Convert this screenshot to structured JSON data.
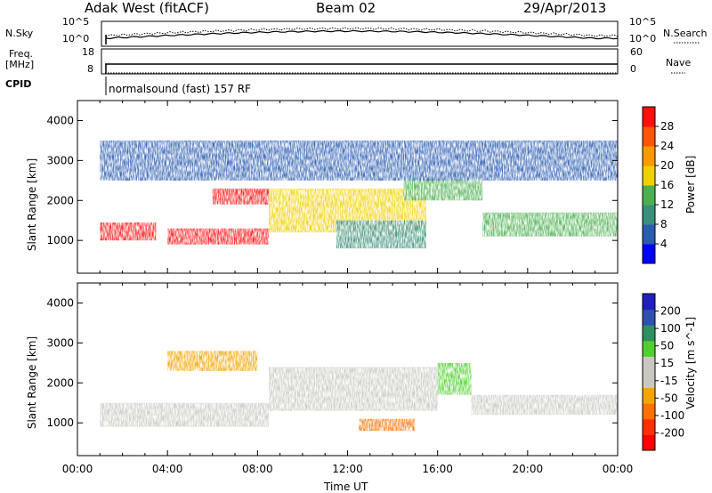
{
  "header": {
    "station": "Adak West (fitACF)",
    "beam": "Beam 02",
    "date": "29/Apr/2013"
  },
  "strips": {
    "nsky_label": "N.Sky",
    "nsearch_label": "N.Search",
    "nsky_ticks": [
      "10^5",
      "10^0"
    ],
    "nsearch_ticks": [
      "10^5",
      "10^0"
    ],
    "freq_label_1": "Freq.",
    "freq_label_2": "[MHz]",
    "freq_ticks": [
      "18",
      "8"
    ],
    "nave_label": "Nave",
    "nave_ticks": [
      "60",
      "0"
    ],
    "cpid_label": "CPID",
    "cpid_value": "normalsound (fast) 157 RF"
  },
  "colors": {
    "power_scale": [
      "#0000ff",
      "#2a5cb0",
      "#3a8f7a",
      "#4cb050",
      "#f0d000",
      "#ff9900",
      "#ff5500",
      "#ff1010"
    ],
    "velocity_scale": [
      "#2020c0",
      "#3050b0",
      "#2f8f5f",
      "#50d030",
      "#c8c8c0",
      "#c8c8c0",
      "#f5a500",
      "#ff7000",
      "#ff3000",
      "#ff0000"
    ],
    "ground_scatter": "#c8c8c0"
  },
  "chart_data": [
    {
      "type": "heatmap",
      "name": "power",
      "title": "",
      "xlabel": "",
      "ylabel": "Slant Range [km]",
      "xlim": [
        "00:00",
        "24:00"
      ],
      "ylim": [
        180,
        4500
      ],
      "yticks": [
        1000,
        2000,
        3000,
        4000
      ],
      "grid": false,
      "colorbar": {
        "label": "Power [dB]",
        "ticks": [
          4,
          8,
          12,
          16,
          20,
          24,
          28
        ],
        "range": [
          0,
          32
        ]
      },
      "regions": [
        {
          "from_h": 1.0,
          "to_h": 3.5,
          "range_km": [
            1000,
            1450
          ],
          "power_db": 28
        },
        {
          "from_h": 4.0,
          "to_h": 8.5,
          "range_km": [
            900,
            1300
          ],
          "power_db": 30
        },
        {
          "from_h": 6.0,
          "to_h": 8.5,
          "range_km": [
            1900,
            2300
          ],
          "power_db": 28
        },
        {
          "from_h": 8.5,
          "to_h": 15.5,
          "range_km": [
            1200,
            2300
          ],
          "power_db": 18
        },
        {
          "from_h": 14.5,
          "to_h": 18.0,
          "range_km": [
            2000,
            2600
          ],
          "power_db": 14
        },
        {
          "from_h": 11.5,
          "to_h": 15.5,
          "range_km": [
            800,
            1500
          ],
          "power_db": 8
        },
        {
          "from_h": 18.0,
          "to_h": 24.0,
          "range_km": [
            1100,
            1700
          ],
          "power_db": 12
        },
        {
          "from_h": 1.0,
          "to_h": 24.0,
          "range_km": [
            2500,
            3500
          ],
          "power_db": 6
        }
      ]
    },
    {
      "type": "heatmap",
      "name": "velocity",
      "title": "",
      "xlabel": "Time UT",
      "ylabel": "Slant Range [km]",
      "xlim": [
        "00:00",
        "24:00"
      ],
      "ylim": [
        180,
        4500
      ],
      "xticks": [
        "00:00",
        "04:00",
        "08:00",
        "12:00",
        "16:00",
        "20:00",
        "00:00"
      ],
      "yticks": [
        1000,
        2000,
        3000,
        4000
      ],
      "grid": false,
      "colorbar": {
        "label": "Velocity [m s^-1]",
        "ticks": [
          200,
          100,
          50,
          15,
          -15,
          -50,
          -100,
          -200
        ],
        "range": [
          -250,
          250
        ]
      },
      "regions": [
        {
          "from_h": 1.0,
          "to_h": 8.5,
          "range_km": [
            900,
            1500
          ],
          "velocity": 0
        },
        {
          "from_h": 8.5,
          "to_h": 16.0,
          "range_km": [
            1300,
            2400
          ],
          "velocity": 0
        },
        {
          "from_h": 16.0,
          "to_h": 17.5,
          "range_km": [
            1700,
            2500
          ],
          "velocity": 30
        },
        {
          "from_h": 17.5,
          "to_h": 24.0,
          "range_km": [
            1200,
            1700
          ],
          "velocity": 0
        },
        {
          "from_h": 12.5,
          "to_h": 15.0,
          "range_km": [
            800,
            1100
          ],
          "velocity": -60
        },
        {
          "from_h": 4.0,
          "to_h": 8.0,
          "range_km": [
            2300,
            2800
          ],
          "velocity": -40
        }
      ]
    }
  ]
}
